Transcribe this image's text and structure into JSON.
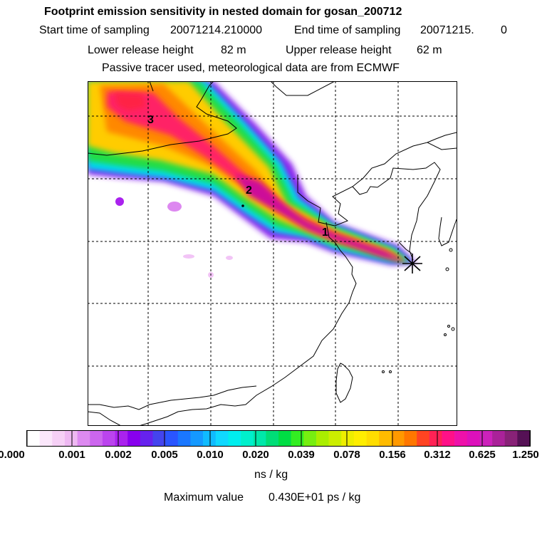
{
  "header": {
    "title": "Footprint emission sensitivity in nested domain for gosan_200712",
    "start_label": "Start time of sampling",
    "start_value": "20071214.210000",
    "end_label": "End time of sampling",
    "end_value": "20071215.",
    "end_suffix": "0",
    "lower_label": "Lower release height",
    "lower_value": "82 m",
    "upper_label": "Upper release height",
    "upper_value": "62 m",
    "tracer_note": "Passive tracer used, meteorological data are from ECMWF"
  },
  "map": {
    "labels": [
      "1",
      "2",
      "3"
    ]
  },
  "colorbar": {
    "ticks": [
      "0.000",
      "0.001",
      "0.002",
      "0.005",
      "0.010",
      "0.020",
      "0.039",
      "0.078",
      "0.156",
      "0.312",
      "0.625",
      "1.250"
    ],
    "colors": [
      "#ffffff",
      "#fbe7fb",
      "#f6d0f6",
      "#eeb8f2",
      "#dd8af0",
      "#cc66ee",
      "#bb44ee",
      "#aa22ee",
      "#8800ee",
      "#6622ee",
      "#4444ee",
      "#2a55ff",
      "#1a77ff",
      "#1599ff",
      "#10bbff",
      "#10d8ff",
      "#00eeee",
      "#00f0cc",
      "#00e8aa",
      "#00dd77",
      "#00dd44",
      "#33ee22",
      "#77ee11",
      "#aaee00",
      "#ccee00",
      "#eeee00",
      "#ffee00",
      "#ffdd00",
      "#ffbb00",
      "#ff9900",
      "#ff7700",
      "#ff4422",
      "#ff2255",
      "#ff1188",
      "#ee11aa",
      "#dd11bb",
      "#cc22bb",
      "#aa2299",
      "#882277",
      "#551155"
    ],
    "unit": "ns / kg"
  },
  "footer": {
    "max_label": "Maximum value",
    "max_value": "0.430E+01 ps / kg"
  }
}
